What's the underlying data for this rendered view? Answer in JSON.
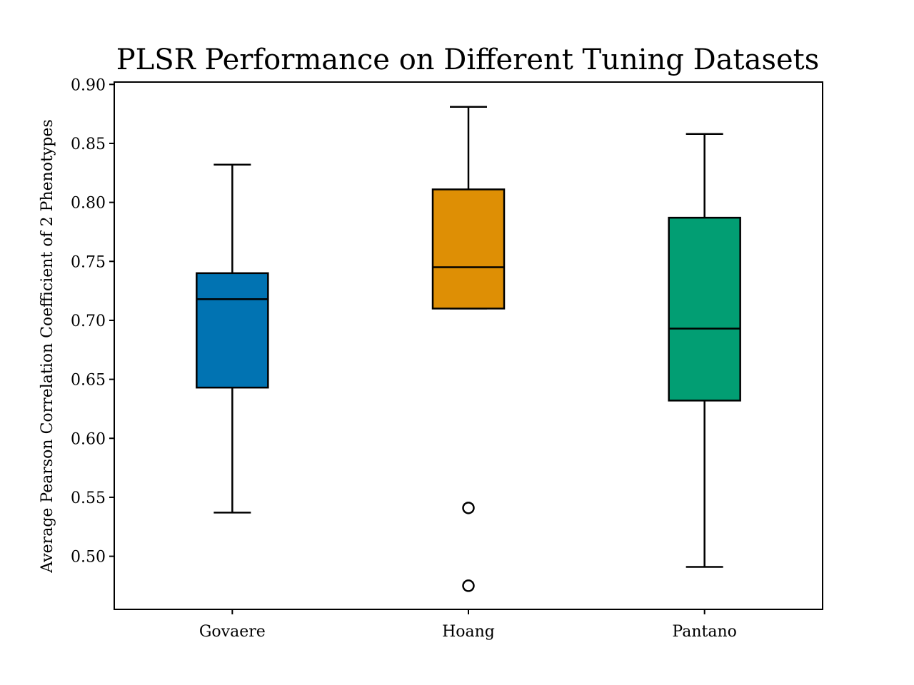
{
  "chart_data": {
    "type": "box",
    "title": "PLSR Performance on Different Tuning Datasets",
    "xlabel": "",
    "ylabel": "Average Pearson Correlation Coefficient of 2 Phenotypes",
    "ylim": [
      0.455,
      0.902
    ],
    "yticks": [
      0.5,
      0.55,
      0.6,
      0.65,
      0.7,
      0.75,
      0.8,
      0.85,
      0.9
    ],
    "ytick_labels": [
      "0.50",
      "0.55",
      "0.60",
      "0.65",
      "0.70",
      "0.75",
      "0.80",
      "0.85",
      "0.90"
    ],
    "categories": [
      "Govaere",
      "Hoang",
      "Pantano"
    ],
    "grid": false,
    "boxes": [
      {
        "name": "Govaere",
        "color": "#0173b2",
        "whisker_low": 0.537,
        "q1": 0.643,
        "median": 0.718,
        "q3": 0.74,
        "whisker_high": 0.832,
        "outliers": []
      },
      {
        "name": "Hoang",
        "color": "#de8f05",
        "whisker_low": 0.71,
        "q1": 0.71,
        "median": 0.745,
        "q3": 0.811,
        "whisker_high": 0.881,
        "outliers": [
          0.541,
          0.475
        ]
      },
      {
        "name": "Pantano",
        "color": "#029e73",
        "whisker_low": 0.491,
        "q1": 0.632,
        "median": 0.693,
        "q3": 0.787,
        "whisker_high": 0.858,
        "outliers": []
      }
    ]
  }
}
